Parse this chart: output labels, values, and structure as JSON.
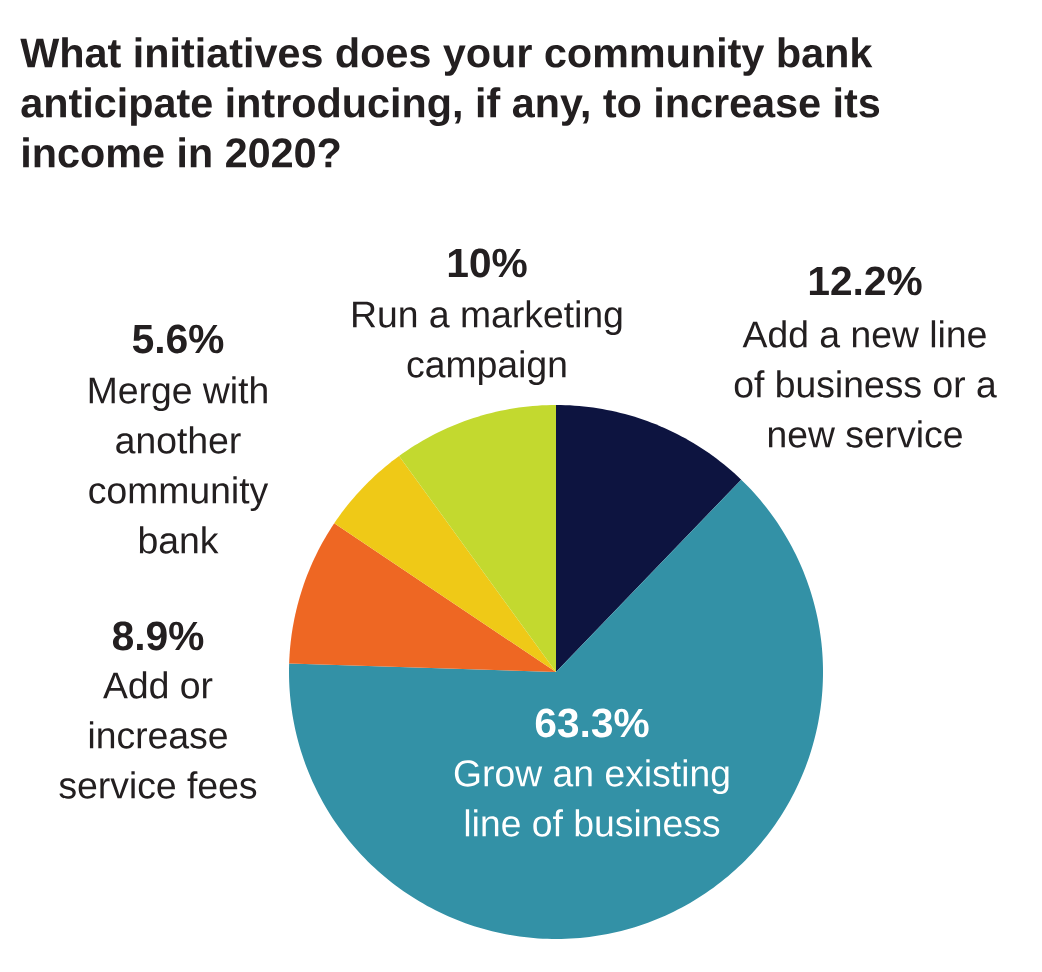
{
  "chart_data": {
    "type": "pie",
    "title": "What initiatives does your community bank anticipate introducing, if any, to increase its income in 2020?",
    "categories": [
      "Add a new line of business or a new service",
      "Grow an existing line of business",
      "Add or increase service fees",
      "Merge with another community bank",
      "Run a marketing campaign"
    ],
    "values": [
      12.2,
      63.3,
      8.9,
      5.6,
      10
    ],
    "value_labels": [
      "12.2%",
      "63.3%",
      "8.9%",
      "5.6%",
      "10%"
    ],
    "colors": [
      "#0d1440",
      "#3391a6",
      "#ee6723",
      "#efc917",
      "#c3d92f"
    ]
  }
}
